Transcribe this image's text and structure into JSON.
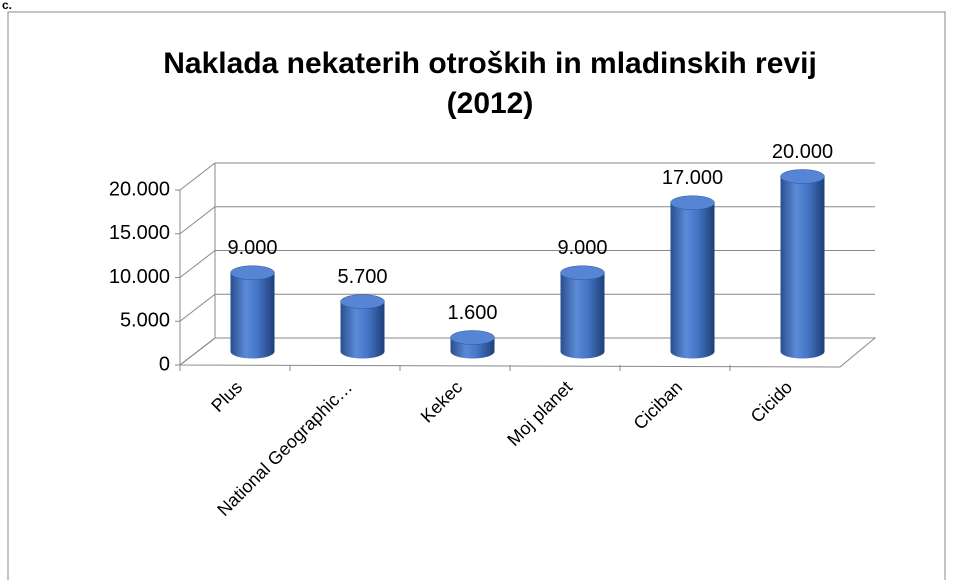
{
  "chart_data": {
    "type": "bar",
    "title": "Naklada nekaterih otroških in mladinskih revij",
    "subtitle": "(2012)",
    "label": "c.",
    "categories": [
      "Plus",
      "National  Geographic…",
      "Kekec",
      "Moj planet",
      "Ciciban",
      "Cicido"
    ],
    "values": [
      9000,
      5700,
      1600,
      9000,
      17000,
      20000
    ],
    "value_labels": [
      "9.000",
      "5.700",
      "1.600",
      "9.000",
      "17.000",
      "20.000"
    ],
    "color": "#4472c4",
    "ylim": [
      0,
      20000
    ],
    "yticks": [
      0,
      {
        "value": 5000,
        "label": "5.000"
      },
      {
        "value": 10000,
        "label": "10.000"
      },
      {
        "value": 15000,
        "label": "15.000"
      },
      {
        "value": 20000,
        "label": "20.000"
      }
    ],
    "grid": true
  }
}
